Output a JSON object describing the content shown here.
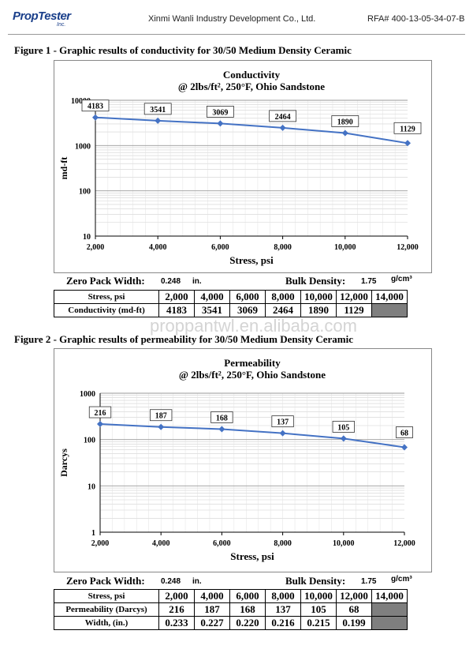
{
  "header": {
    "logo_text": "PropTester",
    "logo_suffix": "Inc.",
    "company": "Xinmi Wanli Industry Development Co., Ltd.",
    "rfa": "RFA# 400-13-05-34-07-B"
  },
  "watermark": "proppantwl.en.alibaba.com",
  "figure1": {
    "caption": "Figure   1 - Graphic results of conductivity for 30/50 Medium Density Ceramic"
  },
  "figure2": {
    "caption": "Figure   2 - Graphic results of permeability for 30/50 Medium Density Ceramic"
  },
  "info1": {
    "zero_pack_label": "Zero Pack Width:",
    "zero_pack_value": "0.248",
    "zero_pack_unit": "in.",
    "bulk_label": "Bulk Density:",
    "bulk_value": "1.75",
    "bulk_unit": "g/cm³"
  },
  "info2": {
    "zero_pack_label": "Zero Pack Width:",
    "zero_pack_value": "0.248",
    "zero_pack_unit": "in.",
    "bulk_label": "Bulk Density:",
    "bulk_value": "1.75",
    "bulk_unit": "g/cm³"
  },
  "table1": {
    "rows": [
      {
        "label": "Stress, psi",
        "cells": [
          "2,000",
          "4,000",
          "6,000",
          "8,000",
          "10,000",
          "12,000",
          "14,000"
        ]
      },
      {
        "label": "Conductivity (md-ft)",
        "cells": [
          "4183",
          "3541",
          "3069",
          "2464",
          "1890",
          "1129",
          ""
        ]
      }
    ]
  },
  "table2": {
    "rows": [
      {
        "label": "Stress, psi",
        "cells": [
          "2,000",
          "4,000",
          "6,000",
          "8,000",
          "10,000",
          "12,000",
          "14,000"
        ]
      },
      {
        "label": "Permeability (Darcys)",
        "cells": [
          "216",
          "187",
          "168",
          "137",
          "105",
          "68",
          ""
        ]
      },
      {
        "label": "Width, (in.)",
        "cells": [
          "0.233",
          "0.227",
          "0.220",
          "0.216",
          "0.215",
          "0.199",
          ""
        ]
      }
    ]
  },
  "chart_data": [
    {
      "type": "line",
      "title": "Conductivity",
      "subtitle": "@ 2lbs/ft², 250°F, Ohio Sandstone",
      "xlabel": "Stress, psi",
      "ylabel": "md-ft",
      "yscale": "log",
      "ylim": [
        10,
        10000
      ],
      "xlim": [
        2000,
        12000
      ],
      "xticks": [
        2000,
        4000,
        6000,
        8000,
        10000,
        12000
      ],
      "xtick_labels": [
        "2,000",
        "4,000",
        "6,000",
        "8,000",
        "10,000",
        "12,000"
      ],
      "yticks": [
        10,
        100,
        1000,
        10000
      ],
      "ytick_labels": [
        "10",
        "100",
        "1000",
        "10000"
      ],
      "x": [
        2000,
        4000,
        6000,
        8000,
        10000,
        12000
      ],
      "values": [
        4183,
        3541,
        3069,
        2464,
        1890,
        1129
      ],
      "data_labels": [
        "4183",
        "3541",
        "3069",
        "2464",
        "1890",
        "1129"
      ],
      "line_color": "#4472c4"
    },
    {
      "type": "line",
      "title": "Permeability",
      "subtitle": "@ 2lbs/ft², 250°F, Ohio Sandstone",
      "xlabel": "Stress, psi",
      "ylabel": "Darcys",
      "yscale": "log",
      "ylim": [
        1,
        1000
      ],
      "xlim": [
        2000,
        12000
      ],
      "xticks": [
        2000,
        4000,
        6000,
        8000,
        10000,
        12000
      ],
      "xtick_labels": [
        "2,000",
        "4,000",
        "6,000",
        "8,000",
        "10,000",
        "12,000"
      ],
      "yticks": [
        1,
        10,
        100,
        1000
      ],
      "ytick_labels": [
        "1",
        "10",
        "100",
        "1000"
      ],
      "x": [
        2000,
        4000,
        6000,
        8000,
        10000,
        12000
      ],
      "values": [
        216,
        187,
        168,
        137,
        105,
        68
      ],
      "data_labels": [
        "216",
        "187",
        "168",
        "137",
        "105",
        "68"
      ],
      "line_color": "#4472c4"
    }
  ]
}
